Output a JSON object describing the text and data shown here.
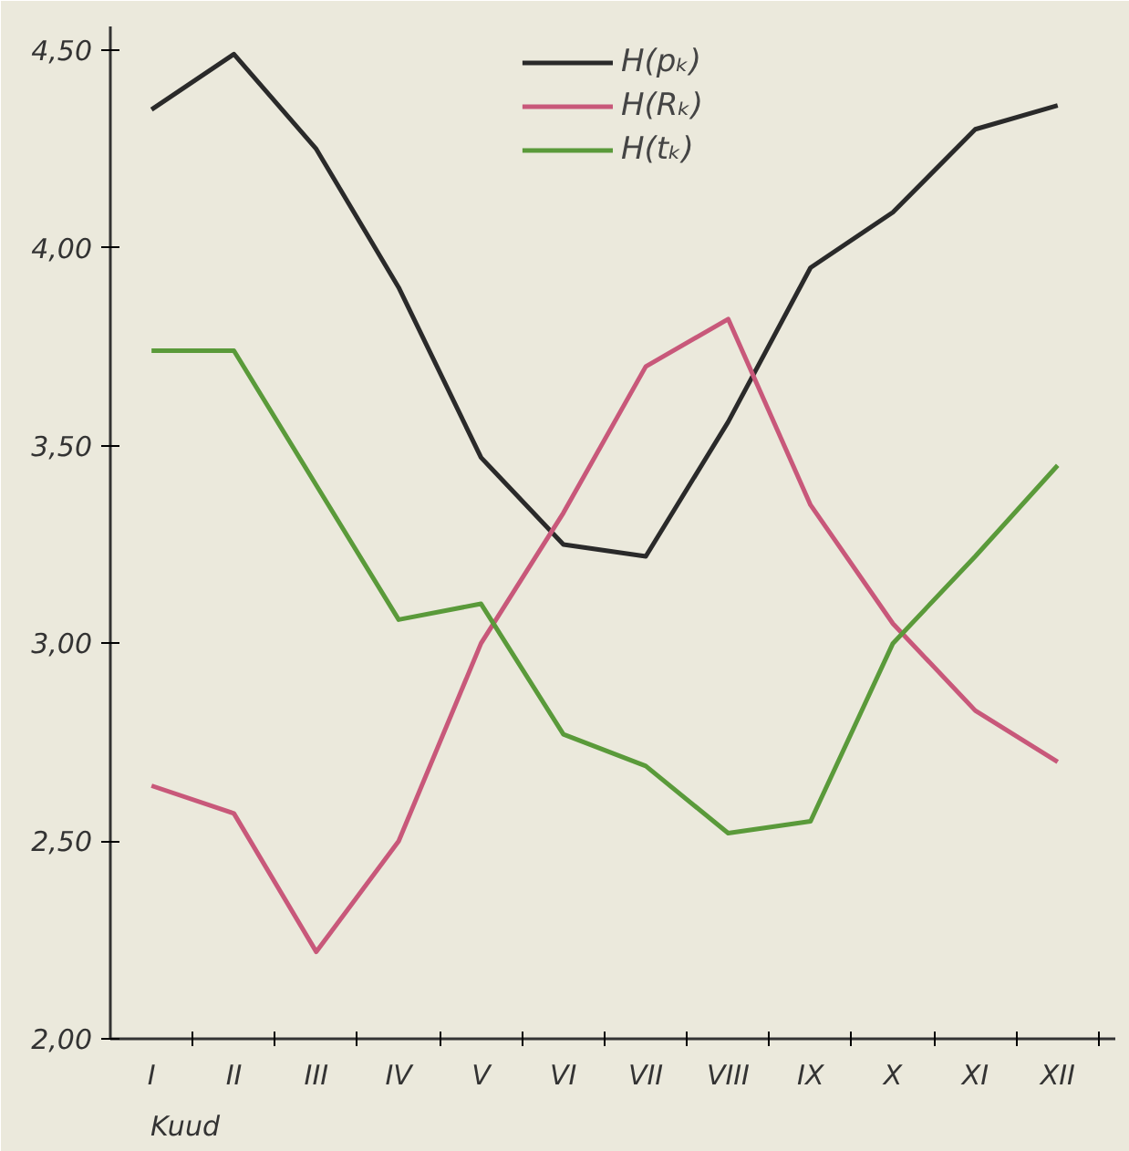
{
  "chart_data": {
    "type": "line",
    "xlabel": "Kuud",
    "legend": "top",
    "grid": false,
    "line_style": "solid",
    "marker": "none",
    "categories": [
      "I",
      "II",
      "III",
      "IV",
      "V",
      "VI",
      "VII",
      "VIII",
      "IX",
      "X",
      "XI",
      "XII"
    ],
    "ylim": [
      2.0,
      4.56
    ],
    "yticks": [
      {
        "value": 2.0,
        "label": "2,00"
      },
      {
        "value": 2.5,
        "label": "2,50"
      },
      {
        "value": 3.0,
        "label": "3,00"
      },
      {
        "value": 3.5,
        "label": "3,50"
      },
      {
        "value": 4.0,
        "label": "4,00"
      },
      {
        "value": 4.5,
        "label": "4,50"
      }
    ],
    "series": [
      {
        "name": "H(pₖ)",
        "color": "#2a2a2a",
        "values": [
          4.35,
          4.49,
          4.25,
          3.9,
          3.47,
          3.25,
          3.22,
          3.56,
          3.95,
          4.09,
          4.3,
          4.36
        ]
      },
      {
        "name": "H(Rₖ)",
        "color": "#c8587a",
        "values": [
          2.64,
          2.57,
          2.22,
          2.5,
          3.0,
          3.33,
          3.7,
          3.82,
          3.35,
          3.05,
          2.83,
          2.7
        ]
      },
      {
        "name": "H(tₖ)",
        "color": "#5a9a3a",
        "values": [
          3.74,
          3.74,
          3.4,
          3.06,
          3.1,
          2.77,
          2.69,
          2.52,
          2.55,
          3.0,
          3.22,
          3.45
        ]
      }
    ]
  }
}
